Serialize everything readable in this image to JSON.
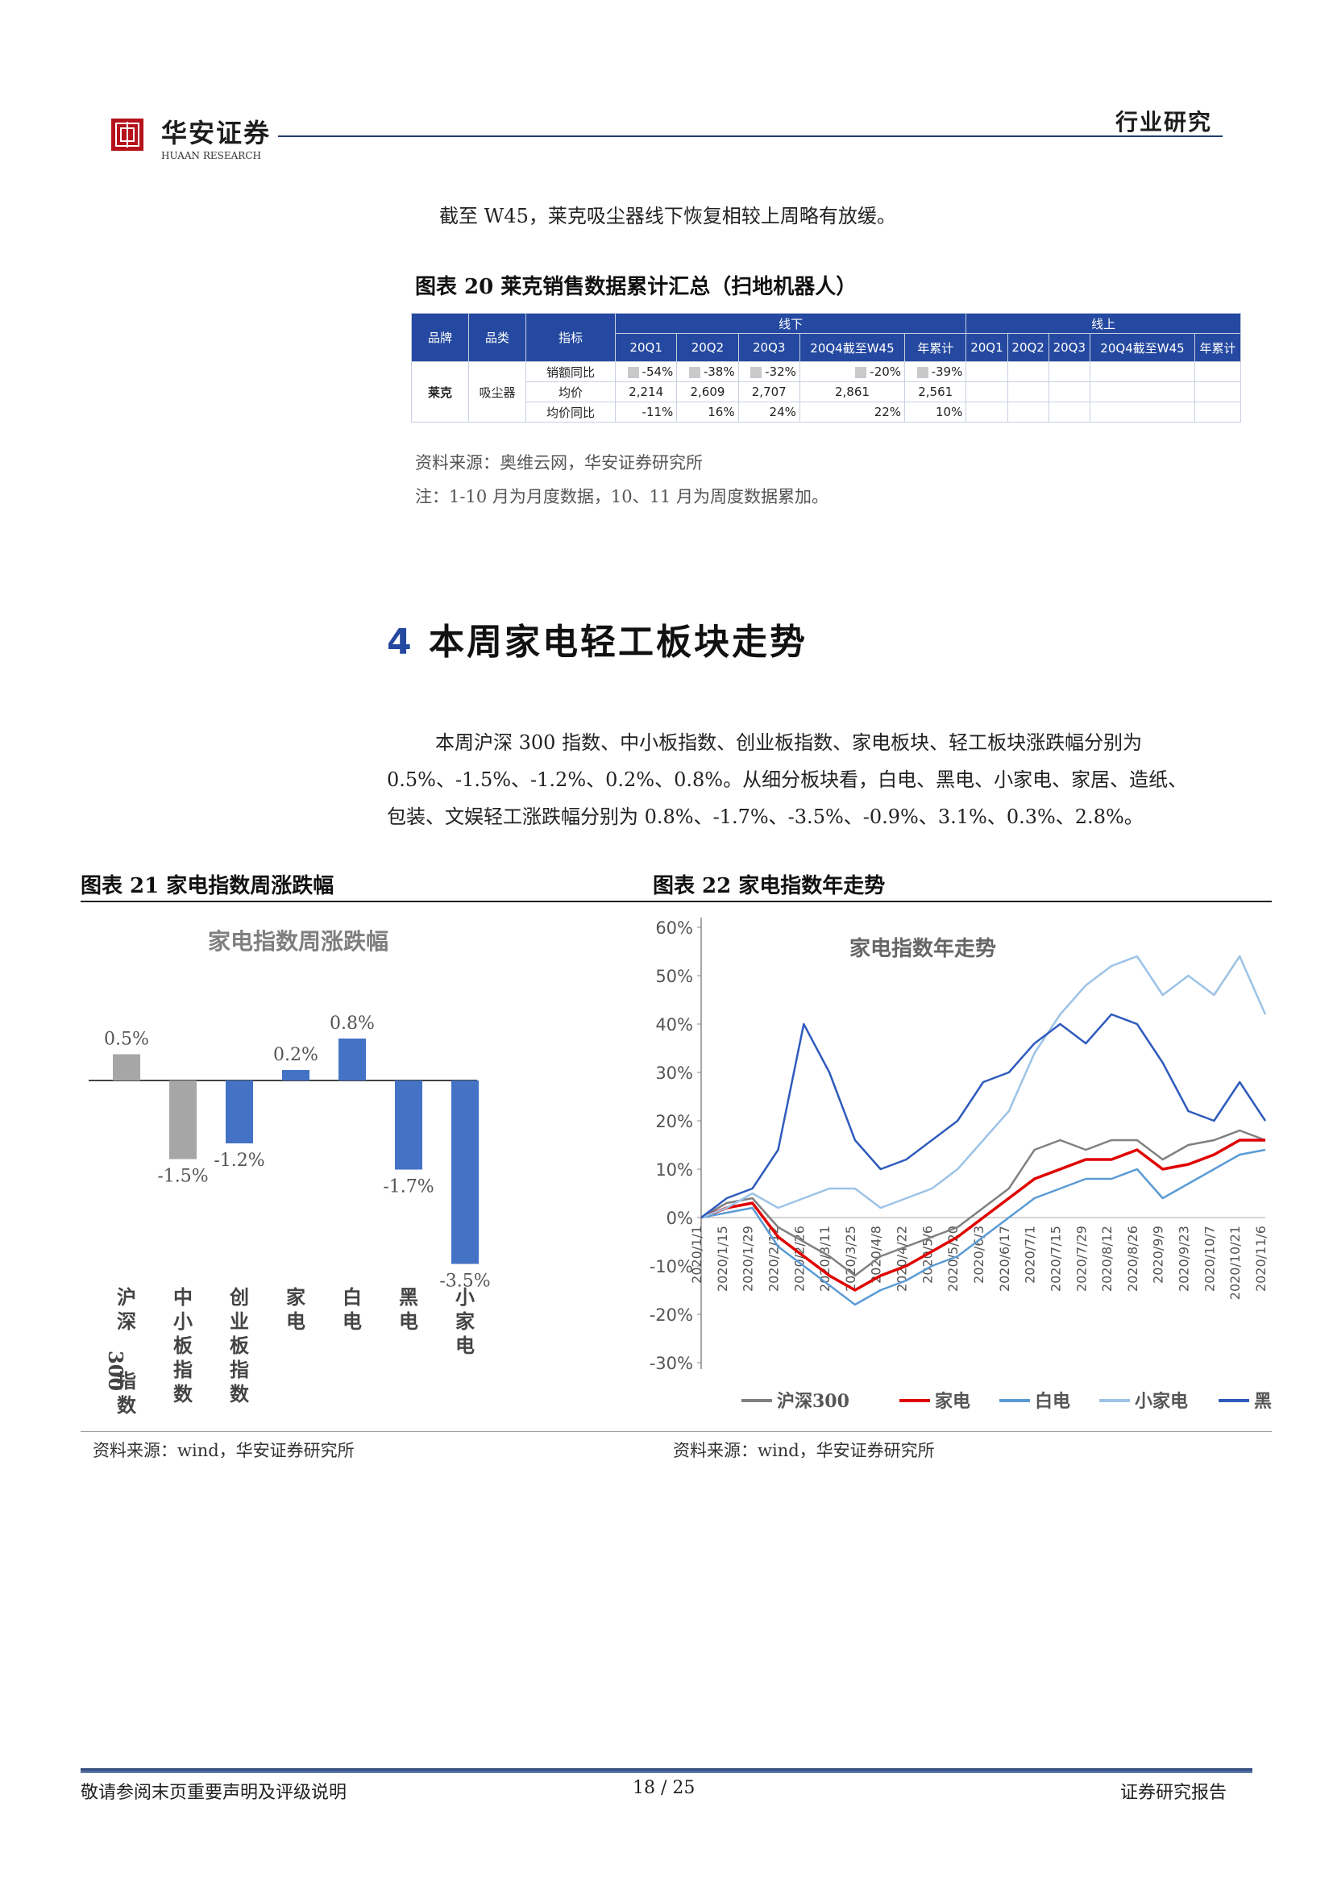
{
  "header": {
    "brand": "华安证券",
    "brand_sub": "HUAAN RESEARCH",
    "section_label": "行业研究"
  },
  "intro_text": "截至 W45，莱克吸尘器线下恢复相较上周略有放缓。",
  "table20": {
    "caption": "图表 20 莱克销售数据累计汇总（扫地机器人）",
    "group_offline": "线下",
    "group_online": "线上",
    "col_brand": "品牌",
    "col_category": "品类",
    "col_metric": "指标",
    "periods": [
      "20Q1",
      "20Q2",
      "20Q3",
      "20Q4截至W45",
      "年累计"
    ],
    "brand": "莱克",
    "category": "吸尘器",
    "rows": [
      {
        "metric": "销额同比",
        "offline": [
          "-54%",
          "-38%",
          "-32%",
          "-20%",
          "-39%"
        ]
      },
      {
        "metric": "均价",
        "offline": [
          "2,214",
          "2,609",
          "2,707",
          "2,861",
          "2,561"
        ]
      },
      {
        "metric": "均价同比",
        "offline": [
          "-11%",
          "16%",
          "24%",
          "22%",
          "10%"
        ]
      }
    ],
    "source": "资料来源：奥维云网，华安证券研究所",
    "note": "注：1-10 月为月度数据，10、11 月为周度数据累加。"
  },
  "section": {
    "number": "4",
    "title": "本周家电轻工板块走势"
  },
  "section_para": [
    "本周沪深 300 指数、中小板指数、创业板指数、家电板块、轻工板块涨跌幅分别为",
    "0.5%、-1.5%、-1.2%、0.2%、0.8%。从细分板块看，白电、黑电、小家电、家居、造纸、",
    "包装、文娱轻工涨跌幅分别为 0.8%、-1.7%、-3.5%、-0.9%、3.1%、0.3%、2.8%。"
  ],
  "fig21": {
    "caption": "图表 21 家电指数周涨跌幅",
    "source": "资料来源：wind，华安证券研究所"
  },
  "fig22": {
    "caption": "图表 22 家电指数年走势",
    "source": "资料来源：wind，华安证券研究所"
  },
  "chart_data": [
    {
      "type": "bar",
      "title": "家电指数周涨跌幅",
      "categories": [
        "沪深300指数",
        "中小板指数",
        "创业板指数",
        "家电",
        "白电",
        "黑电",
        "小家电"
      ],
      "values": [
        0.5,
        -1.5,
        -1.2,
        0.2,
        0.8,
        -1.7,
        -3.5
      ],
      "data_labels": [
        "0.5%",
        "-1.5%",
        "-1.2%",
        "0.2%",
        "0.8%",
        "-1.7%",
        "-3.5%"
      ],
      "colors": [
        "#a6a6a6",
        "#a6a6a6",
        "#4472c4",
        "#4472c4",
        "#4472c4",
        "#4472c4",
        "#4472c4"
      ],
      "ylim": [
        -4,
        2.2
      ]
    },
    {
      "type": "line",
      "title": "家电指数年走势",
      "x": [
        "2020/1/1",
        "2020/1/15",
        "2020/1/29",
        "2020/2/12",
        "2020/2/26",
        "2020/3/11",
        "2020/3/25",
        "2020/4/8",
        "2020/4/22",
        "2020/5/6",
        "2020/5/20",
        "2020/6/3",
        "2020/6/17",
        "2020/7/1",
        "2020/7/15",
        "2020/7/29",
        "2020/8/12",
        "2020/8/26",
        "2020/9/9",
        "2020/9/23",
        "2020/10/7",
        "2020/10/21",
        "2020/11/6"
      ],
      "y_ticks": [
        "60%",
        "50%",
        "40%",
        "30%",
        "20%",
        "10%",
        "0%",
        "-10%",
        "-20%",
        "-30%"
      ],
      "ylim": [
        -30,
        60
      ],
      "series": [
        {
          "name": "沪深300",
          "color": "#808080",
          "values": [
            0,
            3,
            4,
            -2,
            -5,
            -8,
            -12,
            -8,
            -6,
            -4,
            -2,
            2,
            6,
            14,
            16,
            14,
            16,
            16,
            12,
            15,
            16,
            18,
            16
          ]
        },
        {
          "name": "家电",
          "color": "#e00000",
          "values": [
            0,
            2,
            3,
            -4,
            -8,
            -12,
            -15,
            -12,
            -10,
            -7,
            -4,
            0,
            4,
            8,
            10,
            12,
            12,
            14,
            10,
            11,
            13,
            16,
            16
          ]
        },
        {
          "name": "白电",
          "color": "#5b9bd5",
          "values": [
            0,
            1,
            2,
            -6,
            -10,
            -14,
            -18,
            -15,
            -13,
            -10,
            -8,
            -4,
            0,
            4,
            6,
            8,
            8,
            10,
            4,
            7,
            10,
            13,
            14
          ]
        },
        {
          "name": "小家电",
          "color": "#9dc3e6",
          "values": [
            0,
            2,
            5,
            2,
            4,
            6,
            6,
            2,
            4,
            6,
            10,
            16,
            22,
            34,
            42,
            48,
            52,
            54,
            46,
            50,
            46,
            54,
            42
          ]
        },
        {
          "name": "黑电",
          "color": "#2f5bbd",
          "values": [
            0,
            4,
            6,
            14,
            40,
            30,
            16,
            10,
            12,
            16,
            20,
            28,
            30,
            36,
            40,
            36,
            42,
            40,
            32,
            22,
            20,
            28,
            20
          ]
        }
      ]
    }
  ],
  "footer": {
    "left": "敬请参阅末页重要声明及评级说明",
    "page": "18 / 25",
    "right": "证券研究报告"
  }
}
